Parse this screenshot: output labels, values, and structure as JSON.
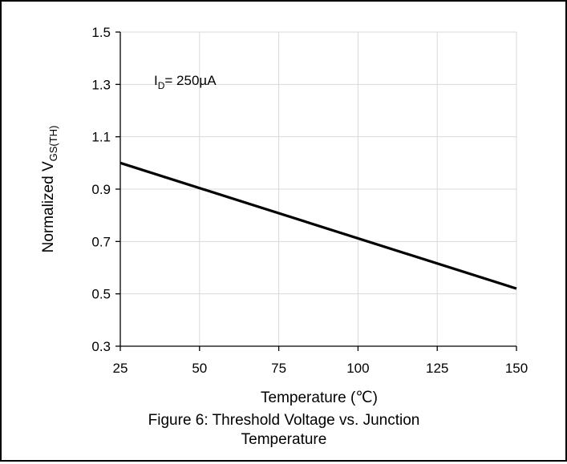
{
  "chart_data": {
    "type": "line",
    "caption_line1": "Figure 6: Threshold Voltage vs. Junction",
    "caption_line2": "Temperature",
    "xlabel": "Temperature (℃)",
    "ylabel_main": "Normalized V",
    "ylabel_sub": "GS(TH)",
    "annotation_main": "I",
    "annotation_sub": "D",
    "annotation_rest": "= 250µA",
    "xlim": [
      25,
      150
    ],
    "ylim": [
      0.3,
      1.5
    ],
    "x_ticks": [
      25,
      50,
      75,
      100,
      125,
      150
    ],
    "y_ticks": [
      "0.3",
      "0.5",
      "0.7",
      "0.9",
      "1.1",
      "1.3",
      "1.5"
    ],
    "grid": true,
    "series": [
      {
        "x": [
          25,
          150
        ],
        "y": [
          1.0,
          0.52
        ]
      }
    ]
  }
}
